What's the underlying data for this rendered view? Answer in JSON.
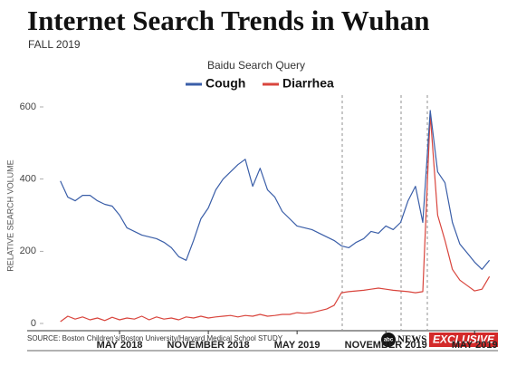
{
  "chart_data": {
    "type": "line",
    "title": "Internet Search Trends in Wuhan",
    "subtitle": "FALL 2019",
    "legend_title": "Baidu Search Query",
    "y_label": "RELATIVE SEARCH VOLUME",
    "source": "SOURCE: Boston Children's/Boston University/Harvard Medical School STUDY",
    "categories": [
      null,
      null,
      null,
      null,
      null,
      null,
      null,
      null,
      "MAY 2018",
      null,
      null,
      null,
      null,
      null,
      null,
      null,
      null,
      null,
      null,
      null,
      "NOVEMBER 2018",
      null,
      null,
      null,
      null,
      null,
      null,
      null,
      null,
      null,
      null,
      null,
      "MAY 2019",
      null,
      null,
      null,
      null,
      null,
      null,
      null,
      null,
      null,
      null,
      null,
      "NOVEMBER 2019",
      null,
      null,
      null,
      null,
      null,
      null,
      null,
      null,
      null,
      null,
      null,
      "MAY 2019",
      null,
      null
    ],
    "series": [
      {
        "name": "Cough",
        "color": "#3a5ea8",
        "values": [
          395,
          350,
          340,
          355,
          355,
          340,
          330,
          325,
          300,
          265,
          255,
          245,
          240,
          235,
          225,
          210,
          185,
          175,
          230,
          290,
          320,
          370,
          400,
          420,
          440,
          455,
          380,
          430,
          370,
          350,
          310,
          290,
          270,
          265,
          260,
          250,
          240,
          230,
          215,
          210,
          225,
          235,
          255,
          250,
          270,
          260,
          280,
          340,
          380,
          280,
          590,
          420,
          390,
          280,
          220,
          195,
          170,
          150,
          175
        ]
      },
      {
        "name": "Diarrhea",
        "color": "#d9453d",
        "values": [
          5,
          20,
          12,
          18,
          10,
          15,
          8,
          17,
          10,
          15,
          12,
          20,
          10,
          18,
          12,
          15,
          10,
          18,
          15,
          20,
          15,
          18,
          20,
          22,
          18,
          22,
          20,
          25,
          20,
          22,
          25,
          25,
          30,
          28,
          30,
          35,
          40,
          50,
          85,
          88,
          90,
          92,
          95,
          98,
          95,
          92,
          90,
          88,
          85,
          88,
          580,
          300,
          230,
          150,
          120,
          105,
          90,
          95,
          130
        ]
      }
    ],
    "ylim": [
      0,
      600
    ],
    "yticks": [
      0,
      200,
      400,
      600
    ],
    "grid": false
  },
  "badge": {
    "network": "abc",
    "news": "NEWS",
    "label": "EXCLUSIVE"
  }
}
